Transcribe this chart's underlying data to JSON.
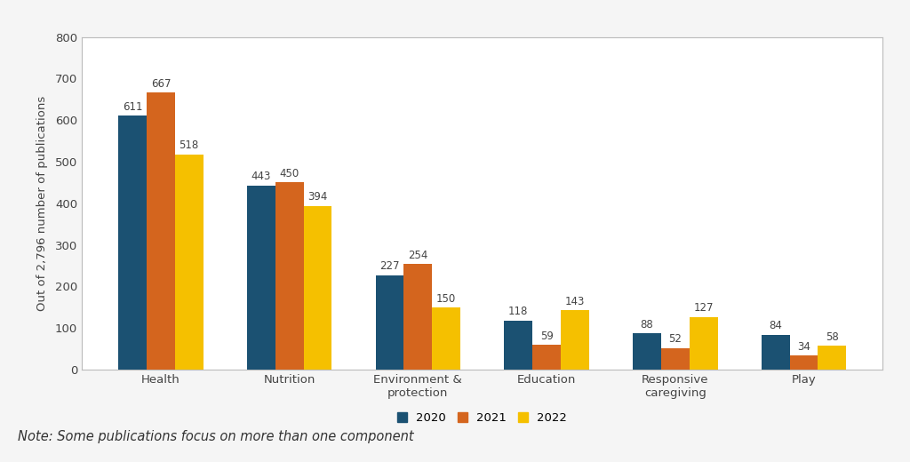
{
  "categories": [
    "Health",
    "Nutrition",
    "Environment &\nprotection",
    "Education",
    "Responsive\ncaregiving",
    "Play"
  ],
  "series": {
    "2020": [
      611,
      443,
      227,
      118,
      88,
      84
    ],
    "2021": [
      667,
      450,
      254,
      59,
      52,
      34
    ],
    "2022": [
      518,
      394,
      150,
      143,
      127,
      58
    ]
  },
  "colors": {
    "2020": "#1b5172",
    "2021": "#d4651e",
    "2022": "#f5c000"
  },
  "ylabel": "Out of 2,796 number of publications",
  "ylim": [
    0,
    800
  ],
  "yticks": [
    0,
    100,
    200,
    300,
    400,
    500,
    600,
    700,
    800
  ],
  "bar_width": 0.22,
  "legend_labels": [
    "2020",
    "2021",
    "2022"
  ],
  "note": "Note: Some publications focus on more than one component",
  "background_color": "#f5f5f5",
  "plot_background": "#ffffff",
  "border_color": "#bbbbbb",
  "label_fontsize": 8.5,
  "axis_fontsize": 9.5,
  "legend_fontsize": 9.5,
  "note_fontsize": 10.5
}
